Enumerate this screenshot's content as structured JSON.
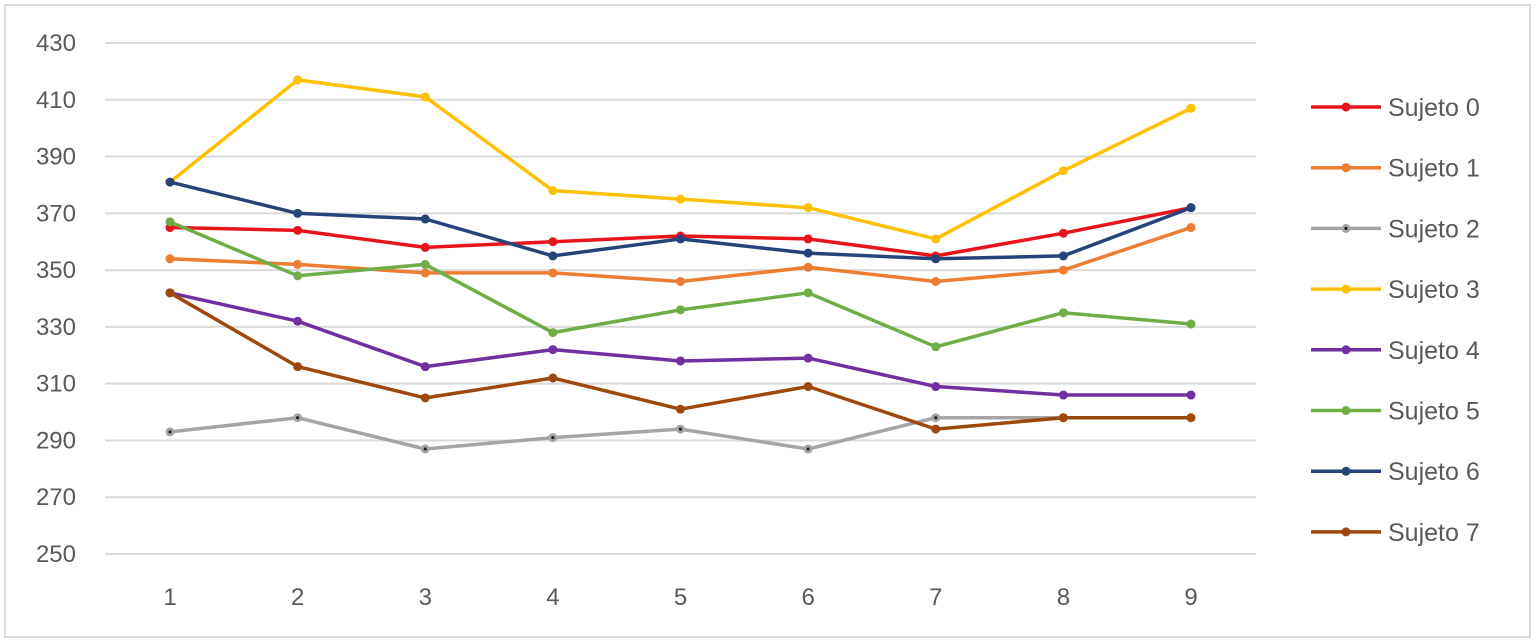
{
  "chart_data": {
    "type": "line",
    "title": "",
    "xlabel": "",
    "ylabel": "",
    "x": [
      1,
      2,
      3,
      4,
      5,
      6,
      7,
      8,
      9
    ],
    "ylim": [
      250,
      430
    ],
    "yticks": [
      250,
      270,
      290,
      310,
      330,
      350,
      370,
      390,
      410,
      430
    ],
    "grid": "horizontal",
    "legend": "right",
    "series": [
      {
        "name": "Sujeto 0",
        "color": "#e8141c",
        "values": [
          365,
          364,
          358,
          360,
          362,
          361,
          355,
          363,
          372
        ]
      },
      {
        "name": "Sujeto 1",
        "color": "#ed7d31",
        "values": [
          354,
          352,
          349,
          349,
          346,
          351,
          346,
          350,
          365
        ]
      },
      {
        "name": "Sujeto 2",
        "color": "#a5a5a5",
        "values": [
          293,
          298,
          287,
          291,
          294,
          287,
          298,
          298,
          298
        ]
      },
      {
        "name": "Sujeto 3",
        "color": "#ffc000",
        "values": [
          381,
          417,
          411,
          378,
          375,
          372,
          361,
          385,
          407
        ]
      },
      {
        "name": "Sujeto 4",
        "color": "#7030a0",
        "values": [
          342,
          332,
          316,
          322,
          318,
          319,
          309,
          306,
          306
        ]
      },
      {
        "name": "Sujeto 5",
        "color": "#70ad47",
        "values": [
          367,
          348,
          352,
          328,
          336,
          342,
          323,
          335,
          331
        ]
      },
      {
        "name": "Sujeto 6",
        "color": "#264478",
        "values": [
          381,
          370,
          368,
          355,
          361,
          356,
          354,
          355,
          372
        ]
      },
      {
        "name": "Sujeto 7",
        "color": "#9e480e",
        "values": [
          342,
          316,
          305,
          312,
          301,
          309,
          294,
          298,
          298
        ]
      }
    ]
  }
}
